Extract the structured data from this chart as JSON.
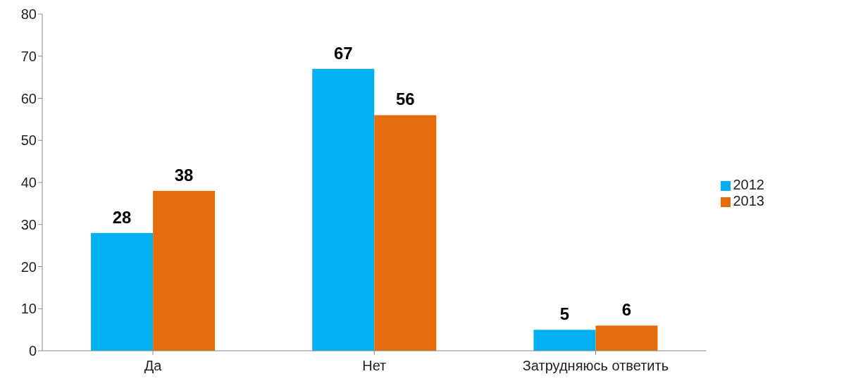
{
  "chart_data": {
    "type": "bar",
    "categories": [
      "Да",
      "Нет",
      "Затрудняюсь ответить"
    ],
    "series": [
      {
        "name": "2012",
        "color": "#00b0f0",
        "values": [
          28,
          67,
          5
        ]
      },
      {
        "name": "2013",
        "color": "#e46c0a",
        "values": [
          38,
          56,
          6
        ]
      }
    ],
    "ylim": [
      0,
      80
    ],
    "yticks": [
      0,
      10,
      20,
      30,
      40,
      50,
      60,
      70,
      80
    ],
    "grid": false,
    "legend": "right",
    "data_labels": true
  }
}
